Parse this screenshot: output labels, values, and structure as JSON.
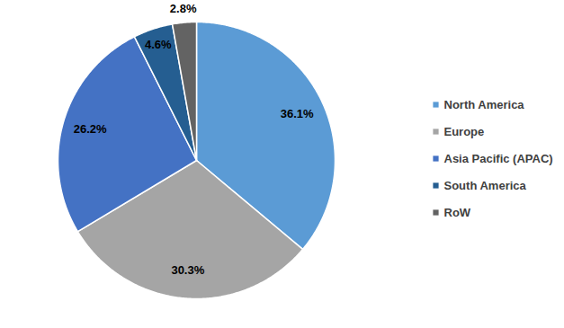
{
  "chart_data": {
    "type": "pie",
    "categories": [
      "North America",
      "Europe",
      "Asia Pacific (APAC)",
      "South America",
      "RoW"
    ],
    "values": [
      36.1,
      30.3,
      26.2,
      4.6,
      2.8
    ],
    "value_labels": [
      "36.1%",
      "30.3%",
      "26.2%",
      "4.6%",
      "2.8%"
    ],
    "colors": [
      "#5b9bd5",
      "#a5a5a5",
      "#4472c4",
      "#255e91",
      "#636363"
    ],
    "data_labels": true,
    "legend": "right"
  }
}
